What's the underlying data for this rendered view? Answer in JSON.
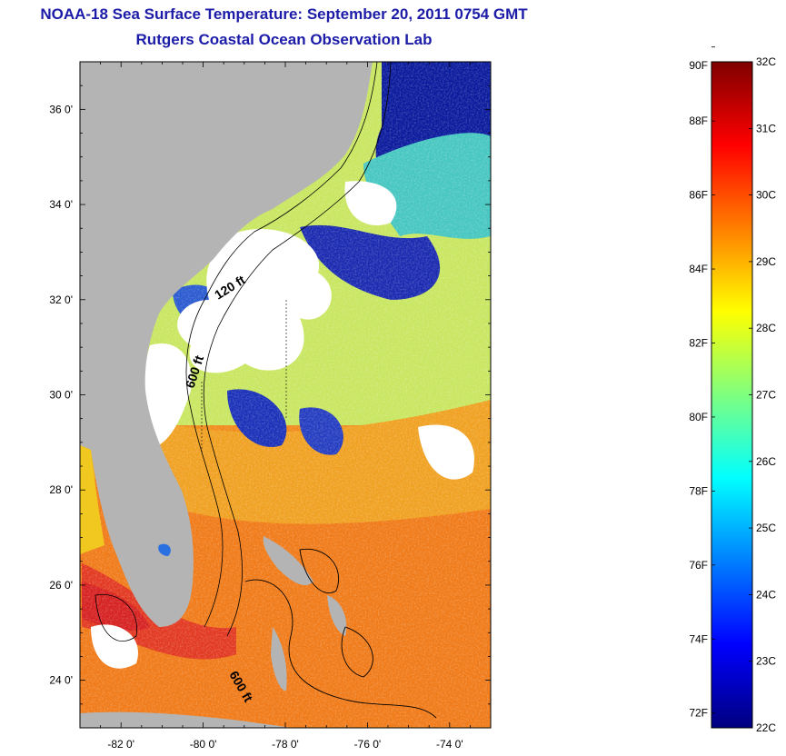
{
  "header": {
    "title": "NOAA-18 Sea Surface Temperature:  September 20, 2011 0754 GMT",
    "subtitle": "Rutgers Coastal Ocean Observation Lab"
  },
  "map": {
    "lon_range": [
      -83,
      -73
    ],
    "lat_range": [
      23,
      37
    ],
    "lat_ticks": [
      "36 0'",
      "34 0'",
      "32 0'",
      "30 0'",
      "28 0'",
      "26 0'",
      "24 0'"
    ],
    "lat_tick_values": [
      36,
      34,
      32,
      30,
      28,
      26,
      24
    ],
    "lon_ticks": [
      "-82 0'",
      "-80 0'",
      "-78 0'",
      "-76 0'",
      "-74 0'"
    ],
    "lon_tick_values": [
      -82,
      -80,
      -78,
      -76,
      -74
    ],
    "contour_labels": [
      "120 ft",
      "600 ft",
      "600 ft"
    ],
    "land_color": "#b4b4b4",
    "cloud_color": "#ffffff"
  },
  "colorbar": {
    "f_labels": [
      "90F",
      "88F",
      "86F",
      "84F",
      "82F",
      "80F",
      "78F",
      "76F",
      "74F",
      "72F"
    ],
    "f_values": [
      90,
      88,
      86,
      84,
      82,
      80,
      78,
      76,
      74,
      72
    ],
    "c_labels": [
      "32C",
      "31C",
      "30C",
      "29C",
      "28C",
      "27C",
      "26C",
      "25C",
      "24C",
      "23C",
      "22C"
    ],
    "c_values": [
      32,
      31,
      30,
      29,
      28,
      27,
      26,
      25,
      24,
      23,
      22
    ],
    "range_c": [
      22,
      32
    ],
    "colors": [
      "#00007f",
      "#0000ff",
      "#007fff",
      "#00ffff",
      "#7fff7f",
      "#ffff00",
      "#ff7f00",
      "#ff0000",
      "#7f0000"
    ]
  }
}
